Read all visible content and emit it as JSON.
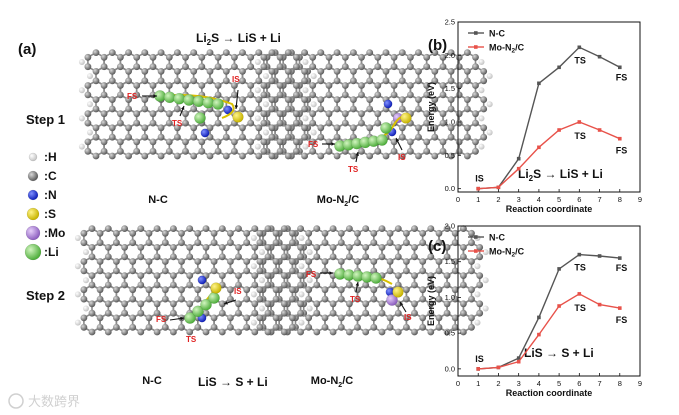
{
  "panel_a": {
    "label": "(a)",
    "step1": {
      "title": "Step 1",
      "reaction": "Li₂S → LiS + Li"
    },
    "step2": {
      "title": "Step 2",
      "reaction": "LiS → S + Li"
    },
    "structure_labels": {
      "nc": "N-C",
      "mo_pre": "Mo-N",
      "mo_sub": "2",
      "mo_post": "/C"
    },
    "markers": {
      "fs": "FS",
      "ts": "TS",
      "is": "IS"
    },
    "legend": [
      {
        "label": ":H",
        "color": "#f2f2f2"
      },
      {
        "label": ":C",
        "color": "#7a7a7a"
      },
      {
        "label": ":N",
        "color": "#1f2fd6"
      },
      {
        "label": ":S",
        "color": "#e8d81c"
      },
      {
        "label": ":Mo",
        "color": "#b58ad8"
      },
      {
        "label": ":Li",
        "color": "#7fd36a"
      }
    ]
  },
  "watermark": "大数跨界",
  "chart_data": [
    {
      "type": "line",
      "panel": "(b)",
      "xlabel": "Reaction coordinate",
      "ylabel": "Energy (eV)",
      "xlim": [
        0,
        9
      ],
      "ylim": [
        -0.05,
        2.5
      ],
      "xticks": [
        "0",
        "1",
        "2",
        "3",
        "4",
        "5",
        "6",
        "7",
        "8",
        "9"
      ],
      "yticks": [
        "0.0",
        "0.5",
        "1.0",
        "1.5",
        "2.0",
        "2.5"
      ],
      "reaction_pre": "Li",
      "reaction_sub": "2",
      "reaction_post": "S → LiS + Li",
      "point_labels": {
        "is": "IS",
        "ts": "TS",
        "fs": "FS"
      },
      "series": [
        {
          "name": "N-C",
          "color": "#555555",
          "x": [
            1,
            2,
            3,
            4,
            5,
            6,
            7,
            8
          ],
          "values": [
            0,
            0.02,
            0.45,
            1.58,
            1.82,
            2.12,
            1.98,
            1.82
          ]
        },
        {
          "name_pre": "Mo-N",
          "name_sub": "2",
          "name_post": "/C",
          "color": "#e8524a",
          "x": [
            1,
            2,
            3,
            4,
            5,
            6,
            7,
            8
          ],
          "values": [
            0,
            0.02,
            0.3,
            0.62,
            0.88,
            1.0,
            0.88,
            0.75
          ]
        }
      ]
    },
    {
      "type": "line",
      "panel": "(c)",
      "xlabel": "Reaction coordinate",
      "ylabel": "Energy (eV)",
      "xlim": [
        0,
        9
      ],
      "ylim": [
        -0.1,
        2.0
      ],
      "xticks": [
        "0",
        "1",
        "2",
        "3",
        "4",
        "5",
        "6",
        "7",
        "8",
        "9"
      ],
      "yticks": [
        "0.0",
        "0.5",
        "1.0",
        "1.5",
        "2.0"
      ],
      "reaction_pre": "LiS → S + Li",
      "reaction_sub": "",
      "reaction_post": "",
      "point_labels": {
        "is": "IS",
        "ts": "TS",
        "fs": "FS"
      },
      "series": [
        {
          "name": "N-C",
          "color": "#555555",
          "x": [
            1,
            2,
            3,
            4,
            5,
            6,
            7,
            8
          ],
          "values": [
            0,
            0.02,
            0.15,
            0.72,
            1.4,
            1.6,
            1.58,
            1.55
          ]
        },
        {
          "name_pre": "Mo-N",
          "name_sub": "2",
          "name_post": "/C",
          "color": "#e8524a",
          "x": [
            1,
            2,
            3,
            4,
            5,
            6,
            7,
            8
          ],
          "values": [
            0,
            0.02,
            0.1,
            0.48,
            0.88,
            1.05,
            0.9,
            0.85
          ]
        }
      ]
    }
  ]
}
